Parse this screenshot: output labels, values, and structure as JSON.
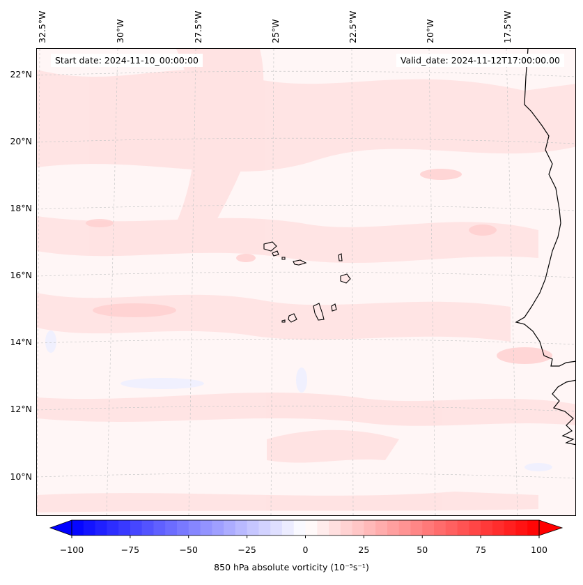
{
  "map": {
    "start_date_label": "Start date: 2024-11-10_00:00:00",
    "valid_date_label": "Valid_date: 2024-11-12T17:00:00.00",
    "longitude_labels": [
      "32.5°W",
      "30°W",
      "27.5°W",
      "25°W",
      "22.5°W",
      "20°W",
      "17.5°W"
    ],
    "latitude_labels": [
      "22°N",
      "20°N",
      "18°N",
      "16°N",
      "14°N",
      "12°N",
      "10°N"
    ],
    "colors": {
      "coastline": "#000000",
      "background_field": "#fff6f6",
      "gridline": "#c8c8c8"
    }
  },
  "colorbar": {
    "title": "850 hPa absolute vorticity (10⁻⁵s⁻¹)",
    "ticks": [
      "−100",
      "−75",
      "−50",
      "−25",
      "0",
      "25",
      "50",
      "75",
      "100"
    ],
    "min": -100,
    "max": 100,
    "low_color": "#0000ff",
    "mid_color": "#ffffff",
    "high_color": "#ff0000",
    "extend": "both"
  }
}
